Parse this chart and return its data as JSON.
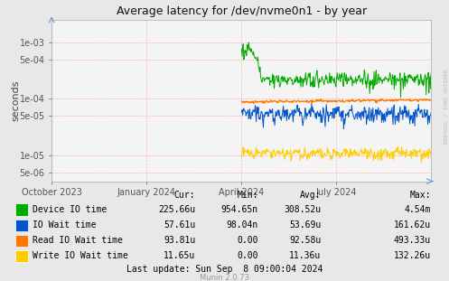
{
  "title": "Average latency for /dev/nvme0n1 - by year",
  "ylabel": "seconds",
  "background_color": "#e8e8e8",
  "plot_bg_color": "#f4f4f4",
  "grid_color_minor": "#ffcccc",
  "grid_color_major": "#ffaaaa",
  "x_tick_labels": [
    "October 2023",
    "January 2024",
    "April 2024",
    "July 2024"
  ],
  "x_tick_pos": [
    0.0,
    0.25,
    0.5,
    0.75
  ],
  "y_ticks": [
    5e-06,
    1e-05,
    5e-05,
    0.0001,
    0.0005,
    0.001
  ],
  "ylim_low": 3.5e-06,
  "ylim_high": 0.0025,
  "colors": {
    "device_io": "#00aa00",
    "io_wait": "#0055cc",
    "read_wait": "#ff7700",
    "write_wait": "#ffcc00"
  },
  "legend_entries": [
    {
      "color": "#00aa00",
      "label": "Device IO time",
      "cur": "225.66u",
      "min": "954.65n",
      "avg": "308.52u",
      "max": "4.54m"
    },
    {
      "color": "#0055cc",
      "label": "IO Wait time",
      "cur": "57.61u",
      "min": "98.04n",
      "avg": "53.69u",
      "max": "161.62u"
    },
    {
      "color": "#ff7700",
      "label": "Read IO Wait time",
      "cur": "93.81u",
      "min": "0.00",
      "avg": "92.58u",
      "max": "493.33u"
    },
    {
      "color": "#ffcc00",
      "label": "Write IO Wait time",
      "cur": "11.65u",
      "min": "0.00",
      "avg": "11.36u",
      "max": "132.26u"
    }
  ],
  "footer": "Last update: Sun Sep  8 09:00:04 2024",
  "munin_version": "Munin 2.0.73",
  "rrdtool_label": "RRDTOOL / TOBI OETIKER"
}
